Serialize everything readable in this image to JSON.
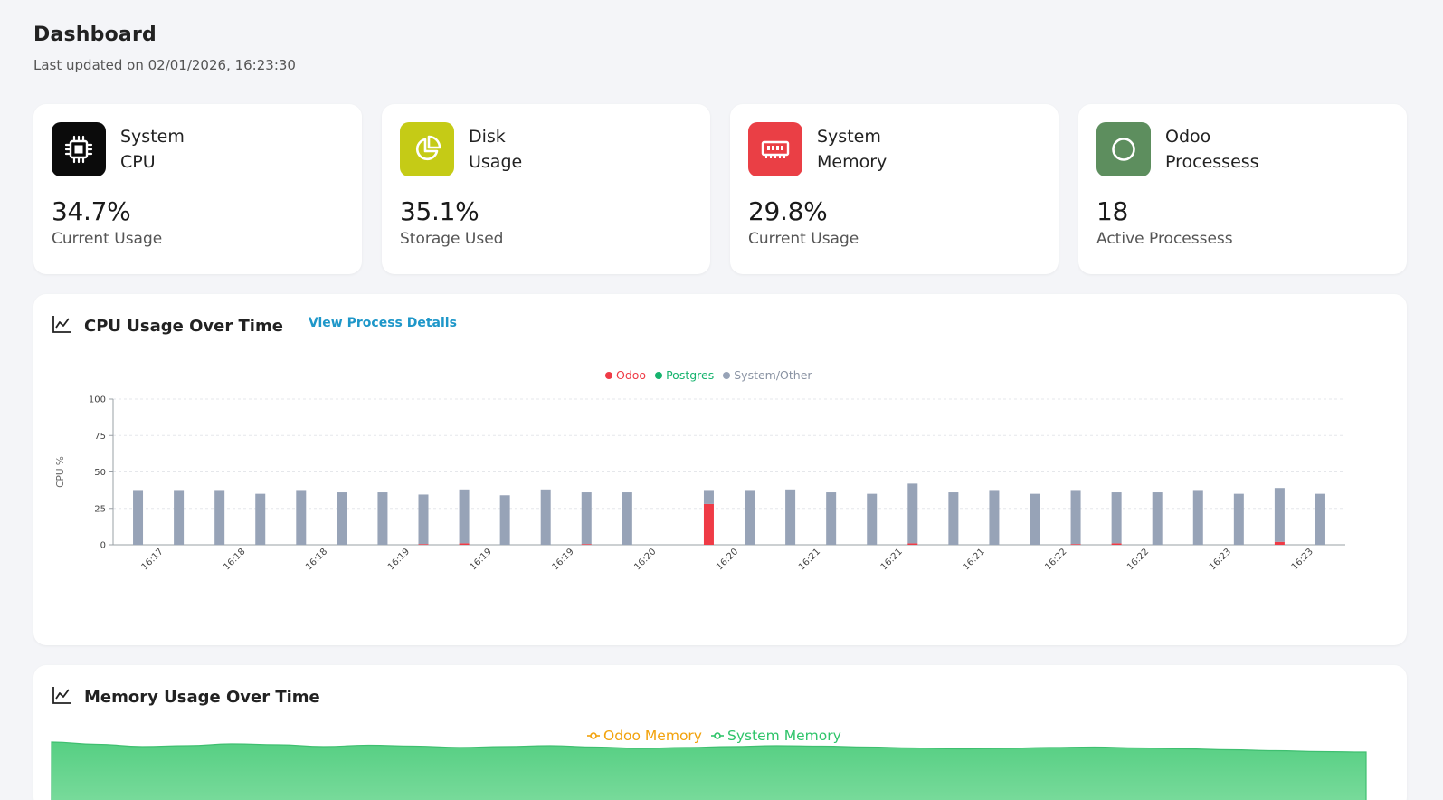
{
  "header": {
    "title": "Dashboard",
    "last_updated": "Last updated on 02/01/2026, 16:23:30"
  },
  "cards": [
    {
      "title_line1": "System",
      "title_line2": "CPU",
      "value": "34.7%",
      "sub": "Current Usage",
      "icon": "cpu-chip-icon",
      "color": "#0b0b0b"
    },
    {
      "title_line1": "Disk",
      "title_line2": "Usage",
      "value": "35.1%",
      "sub": "Storage Used",
      "icon": "pie-chart-icon",
      "color": "#c5cb16"
    },
    {
      "title_line1": "System",
      "title_line2": "Memory",
      "value": "29.8%",
      "sub": "Current Usage",
      "icon": "memory-module-icon",
      "color": "#ea3f45"
    },
    {
      "title_line1": "Odoo",
      "title_line2": "Processess",
      "value": "18",
      "sub": "Active Processess",
      "icon": "odoo-circle-icon",
      "color": "#5d8e5e"
    }
  ],
  "cpu_panel": {
    "title": "CPU Usage Over Time",
    "link": "View Process Details",
    "icon": "line-chart-icon"
  },
  "mem_panel": {
    "title": "Memory Usage Over Time",
    "icon": "line-chart-icon"
  },
  "chart_data": [
    {
      "type": "bar",
      "stacked": true,
      "ylabel": "CPU %",
      "ylim": [
        0,
        100
      ],
      "yticks": [
        "0",
        "25",
        "50",
        "75",
        "100"
      ],
      "legend": [
        {
          "name": "Odoo",
          "color": "#ef3b46"
        },
        {
          "name": "Postgres",
          "color": "#16b36e"
        },
        {
          "name": "System/Other",
          "color": "#97a3b7"
        }
      ],
      "legend_position": "top-center",
      "grid": true,
      "x_tick_labels": [
        "16:17",
        "16:18",
        "16:18",
        "16:19",
        "16:19",
        "16:19",
        "16:20",
        "16:20",
        "16:21",
        "16:21",
        "16:21",
        "16:22",
        "16:22",
        "16:23",
        "16:23"
      ],
      "series": [
        {
          "name": "Odoo",
          "values": [
            0,
            0,
            0,
            0,
            0,
            0,
            0,
            0.5,
            1,
            0,
            0,
            0.5,
            0,
            0,
            28,
            0,
            0,
            0,
            0,
            1,
            0,
            0,
            0,
            0.5,
            1,
            0,
            0,
            0,
            2,
            0
          ]
        },
        {
          "name": "Postgres",
          "values": [
            0,
            0,
            0,
            0,
            0,
            0,
            0,
            0,
            0,
            0,
            0,
            0,
            0,
            0,
            0,
            0,
            0,
            0,
            0,
            0,
            0,
            0,
            0,
            0,
            0,
            0,
            0,
            0,
            0,
            0
          ]
        },
        {
          "name": "System/Other",
          "values": [
            37,
            37,
            37,
            35,
            37,
            36,
            36,
            34,
            37,
            34,
            38,
            35.5,
            36,
            0,
            9,
            37,
            38,
            36,
            35,
            41,
            36,
            37,
            35,
            36.5,
            35,
            36,
            37,
            35,
            37,
            35
          ]
        }
      ]
    },
    {
      "type": "area",
      "legend": [
        {
          "name": "Odoo Memory",
          "color": "#f2a20c"
        },
        {
          "name": "System Memory",
          "color": "#2fc46a"
        }
      ],
      "legend_position": "top-center",
      "series": [
        {
          "name": "System Memory",
          "values": [
            32,
            31.5,
            31,
            31.2,
            31.6,
            31.4,
            31,
            31.3,
            31.1,
            30.8,
            31,
            31.2,
            30.9,
            30.6,
            30.8,
            31,
            31.2,
            31.1,
            30.9,
            30.7,
            30.5,
            30.6,
            30.8,
            30.9,
            30.7,
            30.5,
            30.3,
            30.1,
            29.9,
            29.8
          ]
        }
      ]
    }
  ]
}
